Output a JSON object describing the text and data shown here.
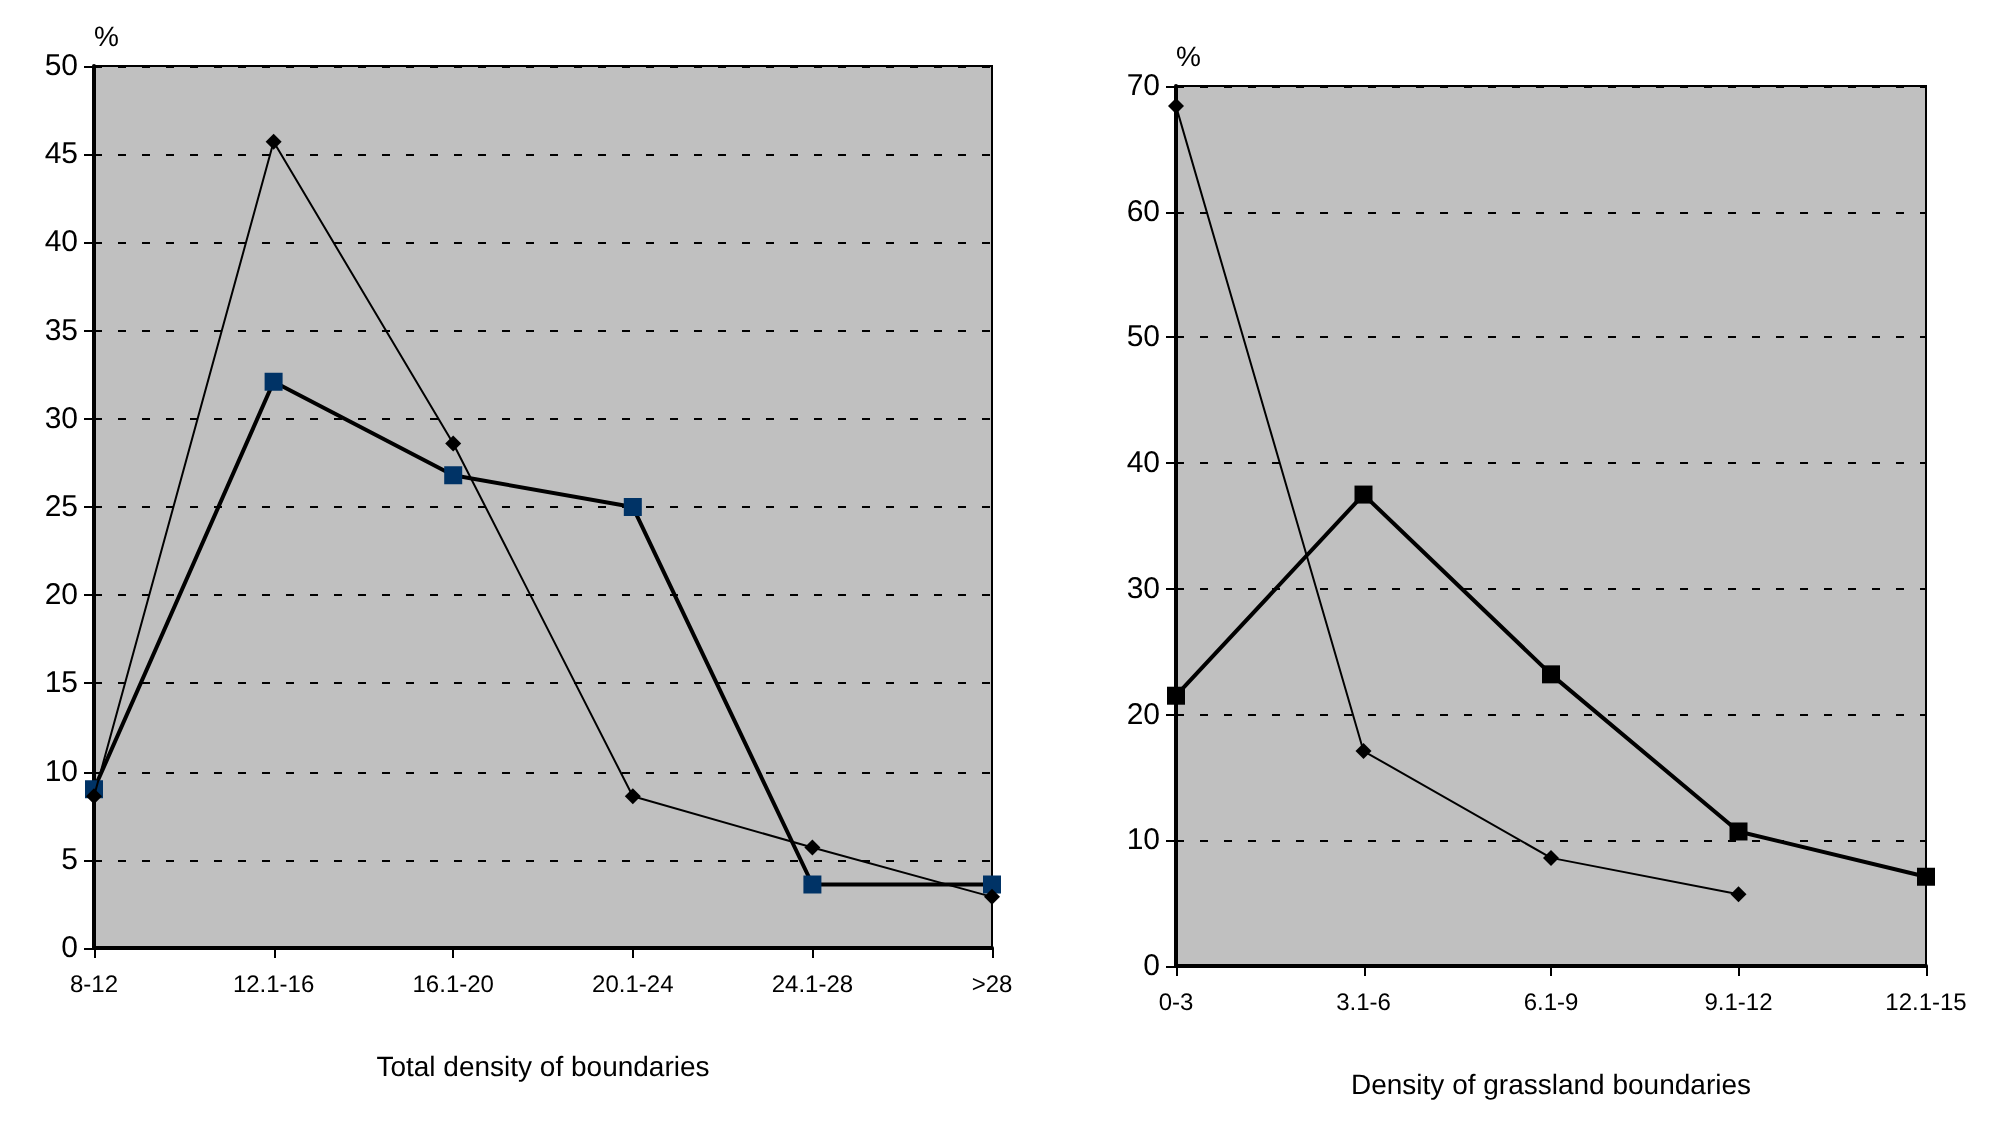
{
  "chart_data": [
    {
      "type": "line",
      "xlabel": "Total density of boundaries",
      "ylabel": "%",
      "categories": [
        "8-12",
        "12.1-16",
        "16.1-20",
        "20.1-24",
        "24.1-28",
        ">28"
      ],
      "ylim": [
        0,
        50
      ],
      "yticks": [
        0,
        5,
        10,
        15,
        20,
        25,
        30,
        35,
        40,
        45,
        50
      ],
      "grid": "y",
      "line_style": "solid",
      "series": [
        {
          "color": "#000000",
          "marker": "diamond",
          "values": [
            8.6,
            45.7,
            28.6,
            8.6,
            5.7,
            2.9
          ]
        },
        {
          "color": "#003366",
          "marker": "square",
          "values": [
            9.0,
            32.1,
            26.8,
            25.0,
            3.6,
            3.6
          ]
        }
      ]
    },
    {
      "type": "line",
      "xlabel": "Density of grassland boundaries",
      "ylabel": "%",
      "categories": [
        "0-3",
        "3.1-6",
        "6.1-9",
        "9.1-12",
        "12.1-15"
      ],
      "ylim": [
        0,
        70
      ],
      "yticks": [
        0,
        10,
        20,
        30,
        40,
        50,
        60,
        70
      ],
      "grid": "y",
      "line_style": "solid",
      "series": [
        {
          "color": "#000000",
          "marker": "diamond",
          "values": [
            68.4,
            17.1,
            8.6,
            5.7,
            null
          ]
        },
        {
          "color": "#000000",
          "marker": "square",
          "values": [
            21.5,
            37.5,
            23.2,
            10.7,
            7.1
          ]
        }
      ]
    }
  ]
}
